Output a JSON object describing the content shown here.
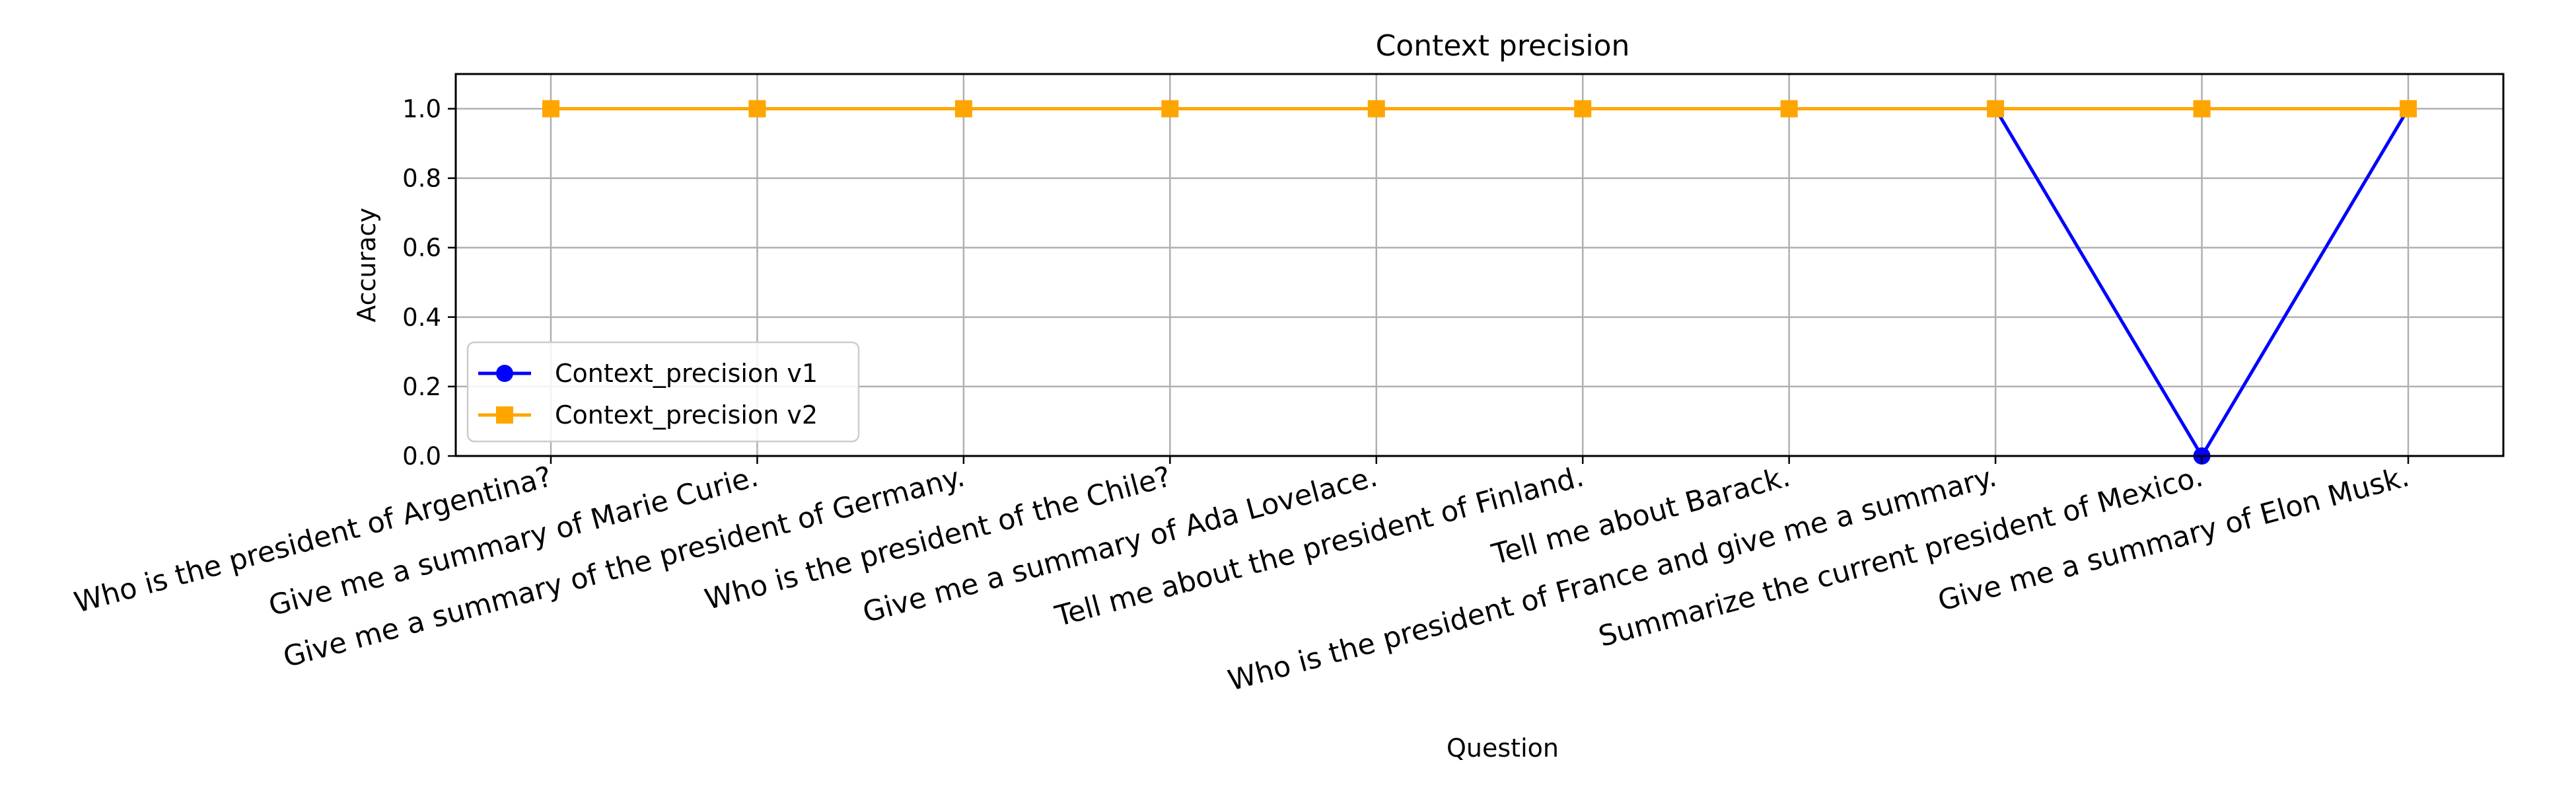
{
  "chart_data": {
    "type": "line",
    "title": "Context precision",
    "xlabel": "Question",
    "ylabel": "Accuracy",
    "categories": [
      "Who is the president of Argentina?",
      "Give me a summary of Marie Curie.",
      "Give me a summary of the president of Germany.",
      "Who is the president of the Chile?",
      "Give me a summary of Ada Lovelace.",
      "Tell me about the president of Finland.",
      "Tell me about Barack.",
      "Who is the president of France and give me a summary.",
      "Summarize the current president of Mexico.",
      "Give me a summary of Elon Musk."
    ],
    "series": [
      {
        "name": "Context_precision v1",
        "values": [
          1,
          1,
          1,
          1,
          1,
          1,
          1,
          1,
          0,
          1
        ],
        "color": "#0000ff",
        "marker": "circle"
      },
      {
        "name": "Context_precision v2",
        "values": [
          1,
          1,
          1,
          1,
          1,
          1,
          1,
          1,
          1,
          1
        ],
        "color": "#ffa500",
        "marker": "square"
      }
    ],
    "ylim": [
      0,
      1.1
    ],
    "yticks": [
      "0.0",
      "0.2",
      "0.4",
      "0.6",
      "0.8",
      "1.0"
    ],
    "grid": true,
    "legend_position": "lower-left"
  }
}
